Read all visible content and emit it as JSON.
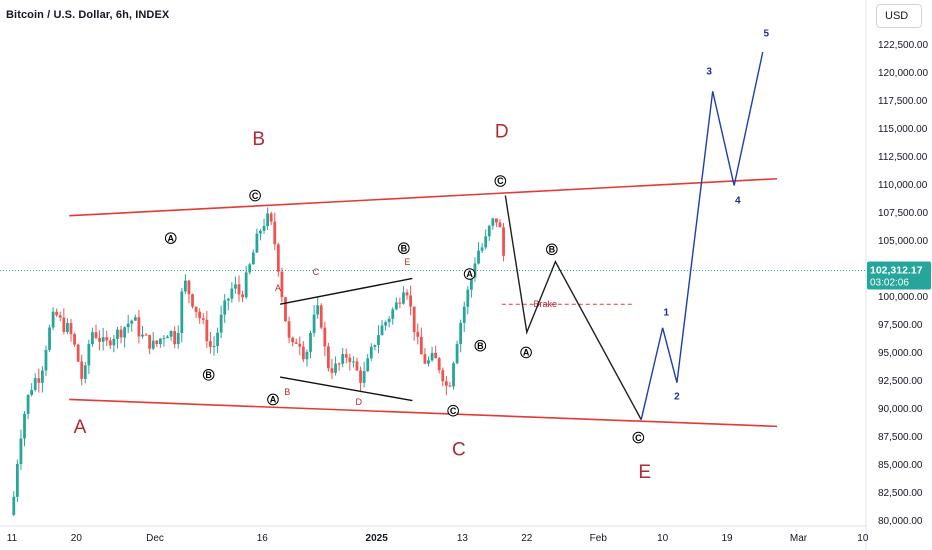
{
  "header": {
    "title": "Bitcoin / U.S. Dollar, 6h, INDEX",
    "currency": "USD"
  },
  "price_badge": {
    "price": "102,312.17",
    "countdown": "03:02:06",
    "color": "#26a69a"
  },
  "colors": {
    "up_candle": "#26a69a",
    "down_candle": "#ef5350",
    "channel_line": "#e53935",
    "wave_label": "#b22833",
    "projection_black": "#1f1f1f",
    "projection_blue": "#1c3fa8"
  },
  "chart_data": {
    "type": "candlestick",
    "title": "Bitcoin / U.S. Dollar, 6h, INDEX",
    "y_axis": {
      "ylim": [
        80000,
        125000
      ],
      "ticks": [
        "122,500.00",
        "120,000.00",
        "117,500.00",
        "115,000.00",
        "112,500.00",
        "110,000.00",
        "107,500.00",
        "105,000.00",
        "102,500.00",
        "100,000.00",
        "97,500.00",
        "95,000.00",
        "92,500.00",
        "90,000.00",
        "87,500.00",
        "85,000.00",
        "82,500.00",
        "80,000.00"
      ],
      "tick_values": [
        122500,
        120000,
        117500,
        115000,
        112500,
        110000,
        107500,
        105000,
        102500,
        100000,
        97500,
        95000,
        92500,
        90000,
        87500,
        85000,
        82500,
        80000
      ]
    },
    "x_axis": {
      "ticks": [
        {
          "label": "11",
          "day": 0,
          "bold": false
        },
        {
          "label": "20",
          "day": 9,
          "bold": false
        },
        {
          "label": "Dec",
          "day": 20,
          "bold": false
        },
        {
          "label": "16",
          "day": 35,
          "bold": false
        },
        {
          "label": "2025",
          "day": 51,
          "bold": true
        },
        {
          "label": "13",
          "day": 63,
          "bold": false
        },
        {
          "label": "22",
          "day": 72,
          "bold": false
        },
        {
          "label": "Feb",
          "day": 82,
          "bold": false
        },
        {
          "label": "10",
          "day": 91,
          "bold": false
        },
        {
          "label": "19",
          "day": 100,
          "bold": false
        },
        {
          "label": "Mar",
          "day": 110,
          "bold": false
        },
        {
          "label": "10",
          "day": 119,
          "bold": false
        }
      ]
    },
    "current_price": 102312.17,
    "price_series": [
      [
        0,
        80500
      ],
      [
        1,
        87000
      ],
      [
        2,
        90500
      ],
      [
        3,
        92500
      ],
      [
        4,
        93000
      ],
      [
        5,
        96500
      ],
      [
        6,
        98500
      ],
      [
        7,
        97500
      ],
      [
        8,
        97000
      ],
      [
        9,
        95000
      ],
      [
        10,
        92000
      ],
      [
        11,
        97000
      ],
      [
        12,
        96500
      ],
      [
        13,
        95500
      ],
      [
        14,
        96500
      ],
      [
        15,
        96800
      ],
      [
        16,
        97500
      ],
      [
        17,
        98000
      ],
      [
        18,
        96500
      ],
      [
        19,
        96000
      ],
      [
        20,
        95500
      ],
      [
        21,
        96500
      ],
      [
        22,
        97000
      ],
      [
        23,
        96000
      ],
      [
        24,
        101500
      ],
      [
        25,
        100000
      ],
      [
        26,
        98500
      ],
      [
        27,
        97000
      ],
      [
        28,
        95000
      ],
      [
        29,
        97500
      ],
      [
        30,
        99500
      ],
      [
        31,
        101000
      ],
      [
        32,
        100000
      ],
      [
        33,
        102000
      ],
      [
        34,
        104500
      ],
      [
        35,
        106500
      ],
      [
        36,
        107000
      ],
      [
        37,
        104000
      ],
      [
        38,
        99000
      ],
      [
        39,
        95000
      ],
      [
        40,
        96500
      ],
      [
        41,
        94500
      ],
      [
        42,
        97500
      ],
      [
        43,
        99000
      ],
      [
        44,
        94000
      ],
      [
        45,
        93500
      ],
      [
        46,
        94000
      ],
      [
        47,
        95000
      ],
      [
        48,
        93500
      ],
      [
        49,
        92500
      ],
      [
        50,
        94500
      ],
      [
        51,
        96500
      ],
      [
        52,
        97500
      ],
      [
        53,
        98500
      ],
      [
        54,
        99500
      ],
      [
        55,
        101500
      ],
      [
        56,
        98000
      ],
      [
        57,
        95000
      ],
      [
        58,
        94000
      ],
      [
        59,
        94500
      ],
      [
        60,
        93500
      ],
      [
        61,
        91500
      ],
      [
        62,
        95500
      ],
      [
        63,
        98500
      ],
      [
        64,
        101000
      ],
      [
        65,
        104000
      ],
      [
        66,
        104500
      ],
      [
        67,
        106500
      ],
      [
        68,
        107000
      ],
      [
        69,
        102500
      ]
    ],
    "channel_lines": [
      {
        "name": "upper",
        "from": [
          8,
          107200
        ],
        "to": [
          107,
          110500
        ]
      },
      {
        "name": "lower",
        "from": [
          8,
          90800
        ],
        "to": [
          107,
          88400
        ]
      }
    ],
    "triangle_lines": [
      {
        "from": [
          37.5,
          99300
        ],
        "to": [
          56,
          101600
        ]
      },
      {
        "from": [
          37.5,
          92800
        ],
        "to": [
          56,
          90700
        ]
      }
    ],
    "projection_black": [
      [
        69,
        109000
      ],
      [
        72,
        96800
      ],
      [
        76,
        103100
      ],
      [
        88,
        89000
      ]
    ],
    "projection_blue": [
      [
        88,
        89000
      ],
      [
        91,
        97200
      ],
      [
        93,
        92300
      ],
      [
        98,
        118300
      ],
      [
        101,
        109900
      ],
      [
        105,
        121800
      ]
    ],
    "brake_line": {
      "from": [
        68.5,
        99300
      ],
      "to": [
        87,
        99300
      ],
      "label": "Brake"
    },
    "annotations": {
      "big_labels": [
        {
          "text": "A",
          "day": 9.5,
          "price": 87800
        },
        {
          "text": "B",
          "day": 34.5,
          "price": 113500
        },
        {
          "text": "C",
          "day": 62.5,
          "price": 85800
        },
        {
          "text": "D",
          "day": 68.5,
          "price": 114200
        },
        {
          "text": "E",
          "day": 88.5,
          "price": 83800
        }
      ],
      "small_red_labels": [
        {
          "text": "A",
          "day": 37.2,
          "price": 100500
        },
        {
          "text": "B",
          "day": 38.5,
          "price": 91200
        },
        {
          "text": "C",
          "day": 42.5,
          "price": 101900
        },
        {
          "text": "D",
          "day": 48.5,
          "price": 90300
        },
        {
          "text": "E",
          "day": 55.3,
          "price": 102800
        }
      ],
      "circle_labels": [
        {
          "text": "C",
          "day": 34.0,
          "price": 109000
        },
        {
          "text": "A",
          "day": 22.2,
          "price": 105200
        },
        {
          "text": "B",
          "day": 27.5,
          "price": 93000
        },
        {
          "text": "A",
          "day": 36.5,
          "price": 90800
        },
        {
          "text": "B",
          "day": 54.8,
          "price": 104300
        },
        {
          "text": "C",
          "day": 61.7,
          "price": 89800
        },
        {
          "text": "A",
          "day": 64.0,
          "price": 102000
        },
        {
          "text": "B",
          "day": 65.5,
          "price": 95600
        },
        {
          "text": "C",
          "day": 68.3,
          "price": 110300
        },
        {
          "text": "A",
          "day": 71.9,
          "price": 95000
        },
        {
          "text": "B",
          "day": 75.5,
          "price": 104200
        },
        {
          "text": "C",
          "day": 87.6,
          "price": 87400
        }
      ],
      "blue_labels": [
        {
          "text": "1",
          "day": 91.5,
          "price": 98300
        },
        {
          "text": "2",
          "day": 93.0,
          "price": 90800
        },
        {
          "text": "3",
          "day": 97.5,
          "price": 119800
        },
        {
          "text": "4",
          "day": 101.5,
          "price": 108300
        },
        {
          "text": "5",
          "day": 105.5,
          "price": 123200
        }
      ]
    }
  }
}
